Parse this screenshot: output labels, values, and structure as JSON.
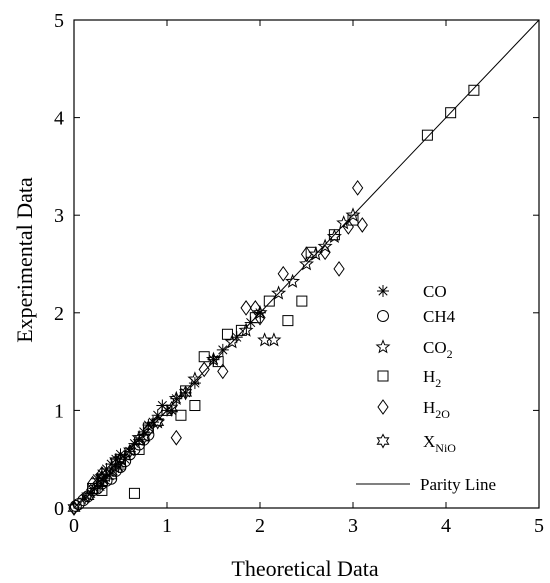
{
  "chart_data": {
    "type": "scatter",
    "title": "",
    "xlabel": "Theoretical Data",
    "ylabel": "Experimental Data",
    "xlim": [
      0,
      5
    ],
    "ylim": [
      0,
      5
    ],
    "xticks": [
      "0",
      "1",
      "2",
      "3",
      "4",
      "5"
    ],
    "yticks": [
      "0",
      "1",
      "2",
      "3",
      "4",
      "5"
    ],
    "grid": false,
    "legend_position": "bottom-right",
    "parity_line": {
      "name": "Parity Line",
      "x": [
        0,
        5
      ],
      "y": [
        0,
        5
      ]
    },
    "series": [
      {
        "name": "CO",
        "sub": "",
        "marker": "asterisk",
        "x": [
          0.12,
          0.18,
          0.22,
          0.25,
          0.28,
          0.3,
          0.32,
          0.35,
          0.38,
          0.4,
          0.42,
          0.45,
          0.48,
          0.5,
          0.55,
          0.6,
          0.65,
          0.7,
          0.75,
          0.8,
          0.85,
          0.9,
          0.95,
          1.0,
          1.05,
          1.1,
          1.2,
          1.3,
          1.5,
          1.6,
          1.75,
          1.9,
          2.0
        ],
        "y": [
          0.1,
          0.15,
          0.2,
          0.3,
          0.22,
          0.35,
          0.28,
          0.4,
          0.33,
          0.45,
          0.38,
          0.5,
          0.42,
          0.55,
          0.5,
          0.58,
          0.66,
          0.7,
          0.78,
          0.85,
          0.88,
          0.95,
          1.05,
          1.0,
          1.0,
          1.12,
          1.18,
          1.28,
          1.52,
          1.62,
          1.75,
          1.9,
          2.0
        ]
      },
      {
        "name": "CH4",
        "sub": "",
        "marker": "circle",
        "x": [
          0.02,
          0.05,
          0.1,
          0.15,
          0.2,
          0.25,
          0.3,
          0.35,
          0.4,
          0.45,
          0.5,
          0.55,
          0.6,
          0.65,
          0.7,
          0.75,
          0.8
        ],
        "y": [
          0.02,
          0.04,
          0.08,
          0.12,
          0.18,
          0.2,
          0.25,
          0.28,
          0.3,
          0.38,
          0.42,
          0.48,
          0.55,
          0.6,
          0.65,
          0.7,
          0.75
        ]
      },
      {
        "name": "CO",
        "sub": "2",
        "marker": "star",
        "x": [
          0.3,
          0.5,
          0.7,
          0.9,
          1.1,
          1.3,
          1.5,
          1.7,
          1.85,
          2.0,
          2.2,
          2.35,
          2.5,
          2.6,
          2.7,
          2.8,
          2.9,
          3.0,
          2.05,
          2.15
        ],
        "y": [
          0.32,
          0.5,
          0.72,
          0.88,
          1.12,
          1.32,
          1.52,
          1.7,
          1.82,
          2.0,
          2.2,
          2.32,
          2.5,
          2.6,
          2.68,
          2.78,
          2.92,
          3.0,
          1.72,
          1.72
        ]
      },
      {
        "name": "H",
        "sub": "2",
        "marker": "square",
        "x": [
          0.2,
          0.3,
          0.4,
          0.5,
          0.65,
          0.8,
          1.0,
          1.2,
          1.3,
          1.4,
          1.55,
          1.65,
          1.8,
          1.95,
          2.1,
          2.3,
          2.45,
          2.55,
          2.8,
          3.0,
          3.8,
          4.05,
          4.3,
          0.7,
          1.15
        ],
        "y": [
          0.2,
          0.18,
          0.35,
          0.45,
          0.15,
          0.82,
          1.0,
          1.2,
          1.05,
          1.55,
          1.5,
          1.78,
          1.82,
          1.95,
          2.12,
          1.92,
          2.12,
          2.62,
          2.8,
          2.95,
          3.82,
          4.05,
          4.28,
          0.6,
          0.95
        ]
      },
      {
        "name": "H",
        "sub": "2O",
        "marker": "diamond",
        "x": [
          0.0,
          0.2,
          0.5,
          0.8,
          1.1,
          1.4,
          1.6,
          1.85,
          2.0,
          2.25,
          2.5,
          2.7,
          2.85,
          3.05,
          3.1,
          2.95,
          1.95,
          0.3
        ],
        "y": [
          0.0,
          0.25,
          0.5,
          0.8,
          0.72,
          1.42,
          1.4,
          2.05,
          1.95,
          2.4,
          2.6,
          2.62,
          2.45,
          3.28,
          2.9,
          2.88,
          2.05,
          0.35
        ]
      },
      {
        "name": "X",
        "sub": "NiO",
        "marker": "hexagram",
        "x": [
          0.0,
          0.15,
          0.3,
          0.45,
          0.6,
          0.75,
          0.9,
          1.05,
          1.2
        ],
        "y": [
          0.0,
          0.12,
          0.3,
          0.48,
          0.58,
          0.72,
          0.88,
          1.02,
          1.18
        ]
      }
    ]
  }
}
